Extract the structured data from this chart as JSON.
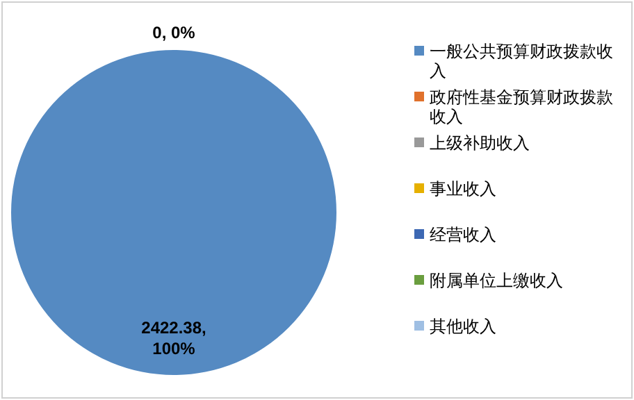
{
  "chart_data": {
    "type": "pie",
    "categories": [
      "一般公共预算财政拨款收入",
      "政府性基金预算财政拨款收入",
      "上级补助收入",
      "事业收入",
      "经营收入",
      "附属单位上缴收入",
      "其他收入"
    ],
    "values": [
      2422.38,
      0,
      0,
      0,
      0,
      0,
      0
    ],
    "colors": [
      "#558ac2",
      "#e0712c",
      "#999999",
      "#e6b000",
      "#3d68b3",
      "#6a9e3f",
      "#9fbfe3"
    ],
    "value_labels": [
      "2422.38,\n100%",
      "0, 0%",
      null,
      null,
      null,
      null,
      null
    ],
    "legend": "right"
  }
}
